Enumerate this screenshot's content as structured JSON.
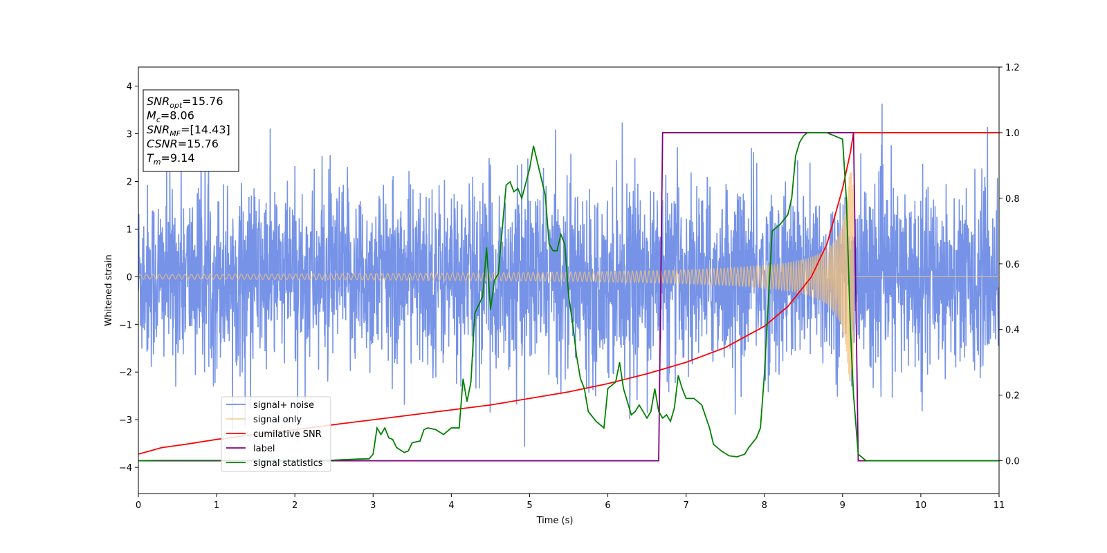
{
  "chart_data": {
    "type": "line",
    "xlabel": "Time (s)",
    "ylabel": "Whitened strain",
    "xlim": [
      0,
      11
    ],
    "ylim": [
      -4.55,
      4.4
    ],
    "y2lim": [
      -0.1,
      1.2
    ],
    "xticks": [
      "0",
      "1",
      "2",
      "3",
      "4",
      "5",
      "6",
      "7",
      "8",
      "9",
      "10",
      "11"
    ],
    "yticks": [
      "4",
      "3",
      "2",
      "1",
      "0",
      "−1",
      "−2",
      "−3",
      "−4"
    ],
    "y2ticks": [
      "1.2",
      "1.0",
      "0.8",
      "0.6",
      "0.4",
      "0.2",
      "0.0"
    ],
    "grid": false,
    "legend_position": "lower-left",
    "info_box": {
      "lines": [
        {
          "base": "SNR",
          "sub": "opt",
          "value": "=15.76"
        },
        {
          "base": "M",
          "sub": "c",
          "value": "=8.06"
        },
        {
          "base": "SNR",
          "sub": "MF",
          "value": "=[14.43]"
        },
        {
          "base": "CSNR",
          "sub": "",
          "value": "=15.76"
        },
        {
          "base": "T",
          "sub": "m",
          "value": "=9.14"
        }
      ]
    },
    "series": [
      {
        "name": "signal+ noise",
        "color": "#6f8de6",
        "axis": "left",
        "kind": "noise",
        "amplitude_envelope": 2.6,
        "t_range": [
          0,
          11
        ]
      },
      {
        "name": "signal only",
        "color": "#f5c27a",
        "axis": "left",
        "kind": "chirp",
        "t_merge": 9.14,
        "amplitude_start": 0.05,
        "amplitude_peak": 2.2
      },
      {
        "name": "cumilative SNR",
        "color": "#ff0000",
        "axis": "right",
        "x": [
          0,
          0.3,
          0.6,
          1,
          1.5,
          2,
          2.5,
          3,
          3.5,
          4,
          4.5,
          5,
          5.5,
          6,
          6.5,
          7,
          7.5,
          8,
          8.3,
          8.6,
          8.8,
          9,
          9.1,
          9.14,
          9.2,
          11
        ],
        "y": [
          0.02,
          0.04,
          0.05,
          0.065,
          0.08,
          0.095,
          0.11,
          0.125,
          0.14,
          0.155,
          0.17,
          0.19,
          0.21,
          0.235,
          0.265,
          0.3,
          0.345,
          0.41,
          0.47,
          0.56,
          0.66,
          0.83,
          0.94,
          1.0,
          1.0,
          1.0
        ]
      },
      {
        "name": "label",
        "color": "#800080",
        "axis": "right",
        "x": [
          0,
          6.65,
          6.7,
          9.12,
          9.14,
          9.2,
          11
        ],
        "y": [
          0,
          0,
          1,
          1,
          1,
          0,
          0
        ]
      },
      {
        "name": "signal statistics",
        "color": "#008000",
        "axis": "right",
        "x": [
          0,
          0.3,
          1,
          2,
          2.5,
          2.8,
          2.95,
          3.0,
          3.05,
          3.1,
          3.15,
          3.2,
          3.25,
          3.3,
          3.4,
          3.45,
          3.5,
          3.6,
          3.65,
          3.7,
          3.8,
          3.9,
          4.0,
          4.1,
          4.15,
          4.2,
          4.25,
          4.3,
          4.4,
          4.45,
          4.5,
          4.55,
          4.6,
          4.7,
          4.75,
          4.8,
          4.85,
          4.9,
          5.0,
          5.05,
          5.1,
          5.15,
          5.2,
          5.25,
          5.3,
          5.35,
          5.4,
          5.45,
          5.5,
          5.55,
          5.6,
          5.65,
          5.7,
          5.75,
          5.85,
          5.95,
          6.0,
          6.05,
          6.1,
          6.15,
          6.2,
          6.3,
          6.35,
          6.4,
          6.5,
          6.55,
          6.6,
          6.65,
          6.7,
          6.75,
          6.8,
          6.85,
          6.9,
          6.95,
          7.0,
          7.1,
          7.15,
          7.2,
          7.3,
          7.35,
          7.45,
          7.55,
          7.65,
          7.75,
          7.8,
          7.9,
          7.95,
          8.0,
          8.05,
          8.1,
          8.15,
          8.2,
          8.3,
          8.35,
          8.4,
          8.45,
          8.5,
          8.55,
          8.6,
          8.7,
          8.8,
          8.9,
          9.0,
          9.05,
          9.1,
          9.14,
          9.2,
          9.3,
          9.5,
          11
        ],
        "y": [
          0.0,
          0.001,
          0.001,
          0.001,
          0.002,
          0.005,
          0.006,
          0.02,
          0.1,
          0.08,
          0.1,
          0.07,
          0.065,
          0.04,
          0.025,
          0.03,
          0.055,
          0.06,
          0.095,
          0.1,
          0.095,
          0.08,
          0.1,
          0.1,
          0.25,
          0.18,
          0.24,
          0.45,
          0.5,
          0.65,
          0.46,
          0.55,
          0.57,
          0.84,
          0.85,
          0.82,
          0.83,
          0.8,
          0.89,
          0.96,
          0.91,
          0.86,
          0.81,
          0.66,
          0.64,
          0.64,
          0.69,
          0.66,
          0.5,
          0.42,
          0.32,
          0.25,
          0.22,
          0.15,
          0.12,
          0.1,
          0.22,
          0.23,
          0.24,
          0.3,
          0.22,
          0.14,
          0.15,
          0.17,
          0.13,
          0.15,
          0.22,
          0.15,
          0.13,
          0.14,
          0.12,
          0.16,
          0.26,
          0.22,
          0.19,
          0.19,
          0.18,
          0.17,
          0.1,
          0.05,
          0.03,
          0.015,
          0.012,
          0.02,
          0.04,
          0.07,
          0.1,
          0.26,
          0.48,
          0.7,
          0.71,
          0.72,
          0.75,
          0.8,
          0.93,
          0.97,
          0.99,
          1.0,
          1.0,
          1.0,
          1.0,
          0.99,
          0.98,
          0.79,
          0.4,
          0.2,
          0.02,
          0.0,
          0.0,
          0.0
        ]
      }
    ]
  }
}
